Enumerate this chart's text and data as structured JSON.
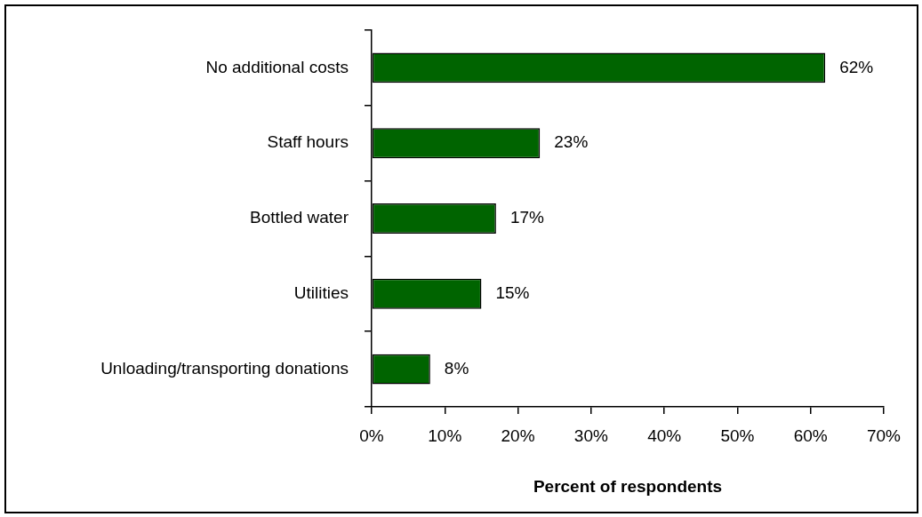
{
  "chart_data": {
    "type": "bar",
    "orientation": "horizontal",
    "xlabel": "Percent of respondents",
    "categories": [
      "No additional costs",
      "Staff hours",
      "Bottled water",
      "Utilities",
      "Unloading/transporting donations"
    ],
    "values": [
      62,
      23,
      17,
      15,
      8
    ],
    "color": "#006400",
    "value_labels": [
      "62%",
      "23%",
      "17%",
      "15%",
      "8%"
    ],
    "xlim": [
      0,
      70
    ],
    "xticks": [
      {
        "value": 0,
        "label": "0%"
      },
      {
        "value": 10,
        "label": "10%"
      },
      {
        "value": 20,
        "label": "20%"
      },
      {
        "value": 30,
        "label": "30%"
      },
      {
        "value": 40,
        "label": "40%"
      },
      {
        "value": 50,
        "label": "50%"
      },
      {
        "value": 60,
        "label": "60%"
      },
      {
        "value": 70,
        "label": "70%"
      }
    ]
  }
}
